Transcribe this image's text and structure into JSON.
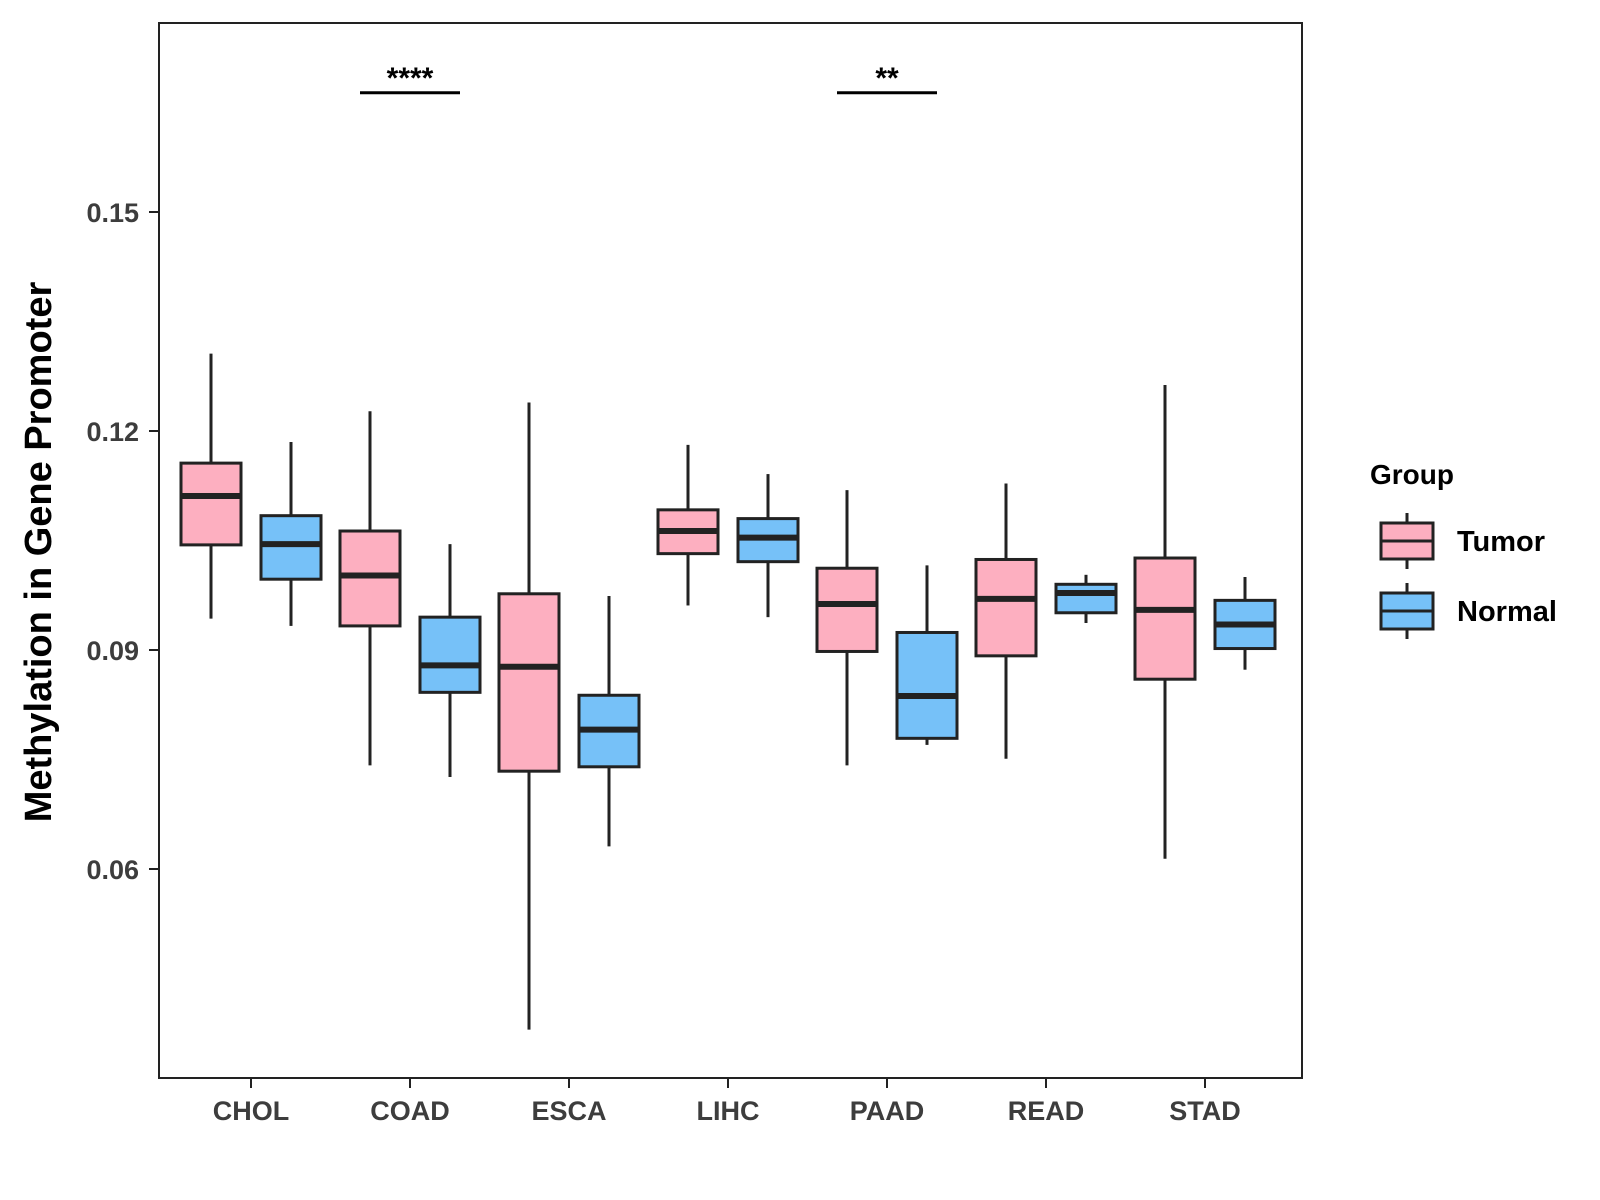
{
  "chart_data": {
    "type": "boxplot",
    "title": "",
    "xlabel": "",
    "ylabel": "Methylation in Gene Promoter",
    "ylim": [
      0.031,
      0.176
    ],
    "yticks": [
      0.06,
      0.09,
      0.12,
      0.15
    ],
    "ytick_labels": [
      "0.06",
      "0.09",
      "0.12",
      "0.15"
    ],
    "categories": [
      "CHOL",
      "COAD",
      "ESCA",
      "LIHC",
      "PAAD",
      "READ",
      "STAD"
    ],
    "legend": {
      "title": "Group",
      "position": "right",
      "entries": [
        {
          "name": "Tumor",
          "color": "#FDAFC0"
        },
        {
          "name": "Normal",
          "color": "#76C1F8"
        }
      ]
    },
    "series": [
      {
        "name": "Tumor",
        "color": "#FDAFC0",
        "boxes": [
          {
            "category": "CHOL",
            "low": 0.0943,
            "q1": 0.1044,
            "median": 0.1111,
            "q3": 0.1156,
            "high": 0.1306
          },
          {
            "category": "COAD",
            "low": 0.0742,
            "q1": 0.0933,
            "median": 0.1002,
            "q3": 0.1063,
            "high": 0.1227
          },
          {
            "category": "ESCA",
            "low": 0.038,
            "q1": 0.0734,
            "median": 0.0877,
            "q3": 0.0977,
            "high": 0.1239
          },
          {
            "category": "LIHC",
            "low": 0.0961,
            "q1": 0.1032,
            "median": 0.1063,
            "q3": 0.1092,
            "high": 0.1181
          },
          {
            "category": "PAAD",
            "low": 0.0742,
            "q1": 0.0898,
            "median": 0.0963,
            "q3": 0.1012,
            "high": 0.1119
          },
          {
            "category": "READ",
            "low": 0.0751,
            "q1": 0.0892,
            "median": 0.097,
            "q3": 0.1024,
            "high": 0.1128
          },
          {
            "category": "STAD",
            "low": 0.0614,
            "q1": 0.086,
            "median": 0.0955,
            "q3": 0.1026,
            "high": 0.1263
          }
        ]
      },
      {
        "name": "Normal",
        "color": "#76C1F8",
        "boxes": [
          {
            "category": "CHOL",
            "low": 0.0933,
            "q1": 0.0997,
            "median": 0.1045,
            "q3": 0.1084,
            "high": 0.1185
          },
          {
            "category": "COAD",
            "low": 0.0726,
            "q1": 0.0842,
            "median": 0.0879,
            "q3": 0.0945,
            "high": 0.1045
          },
          {
            "category": "ESCA",
            "low": 0.0631,
            "q1": 0.074,
            "median": 0.0791,
            "q3": 0.0838,
            "high": 0.0974
          },
          {
            "category": "LIHC",
            "low": 0.0945,
            "q1": 0.1021,
            "median": 0.1054,
            "q3": 0.108,
            "high": 0.1141
          },
          {
            "category": "PAAD",
            "low": 0.077,
            "q1": 0.0779,
            "median": 0.0837,
            "q3": 0.0924,
            "high": 0.1016
          },
          {
            "category": "READ",
            "low": 0.0937,
            "q1": 0.0951,
            "median": 0.0978,
            "q3": 0.099,
            "high": 0.1003
          },
          {
            "category": "STAD",
            "low": 0.0873,
            "q1": 0.0902,
            "median": 0.0935,
            "q3": 0.0968,
            "high": 0.1
          }
        ]
      }
    ],
    "annotations": [
      {
        "category": "COAD",
        "label": "****",
        "y": 0.1677
      },
      {
        "category": "PAAD",
        "label": "**",
        "y": 0.1677
      }
    ]
  }
}
